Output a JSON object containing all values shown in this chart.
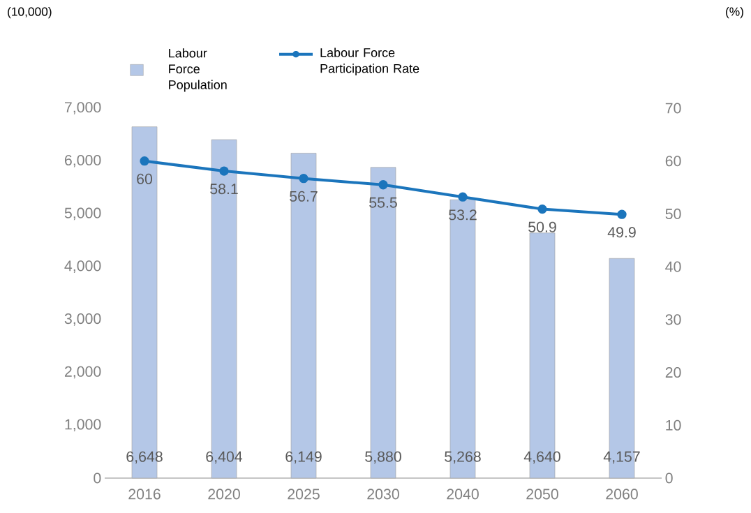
{
  "chart_data": {
    "type": "bar",
    "categories": [
      "2016",
      "2020",
      "2025",
      "2030",
      "2040",
      "2050",
      "2060"
    ],
    "annotations": [
      "(10,000)",
      "(%)"
    ],
    "series": [
      {
        "name": "Labour Force Population",
        "color": "#b4c7e7",
        "values": [
          6648,
          6404,
          6149,
          5880,
          5268,
          4640,
          4157
        ],
        "value_labels": [
          "6,648",
          "6,404",
          "6,149",
          "5,880",
          "5,268",
          "4,640",
          "4,157"
        ]
      },
      {
        "name": "Labour Force Participation Rate",
        "type": "line",
        "axis": "y2",
        "color": "#1b75bc",
        "values": [
          60,
          58.1,
          56.7,
          55.5,
          53.2,
          50.9,
          49.9
        ]
      }
    ],
    "ylim": [
      0,
      7000
    ],
    "yticks": [
      0,
      {
        "value": 1000,
        "label": "1,000"
      },
      {
        "value": 2000,
        "label": "2,000"
      },
      {
        "value": 3000,
        "label": "3,000"
      },
      {
        "value": 4000,
        "label": "4,000"
      },
      {
        "value": 5000,
        "label": "5,000"
      },
      {
        "value": 6000,
        "label": "6,000"
      },
      {
        "value": 7000,
        "label": "7,000"
      }
    ],
    "y2lim": [
      0,
      70
    ],
    "y2ticks": [
      0,
      10,
      20,
      30,
      40,
      50,
      60,
      70
    ],
    "marker": "circle",
    "legend": "top left",
    "data_labels": true
  }
}
